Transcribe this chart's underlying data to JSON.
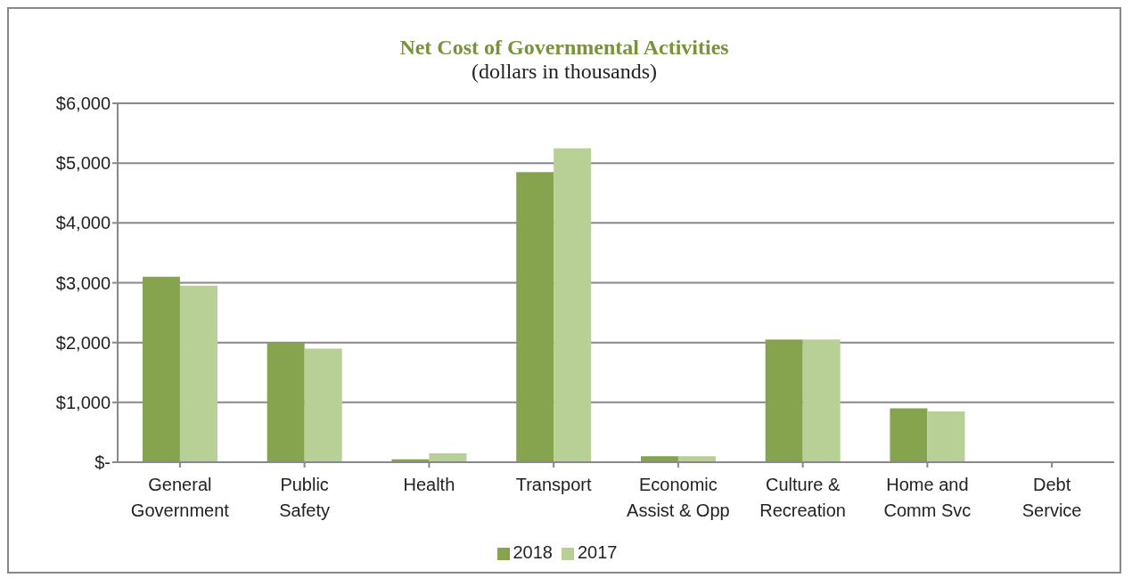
{
  "chart_data": {
    "type": "bar",
    "title": "Net Cost of Governmental Activities",
    "subtitle": "(dollars in thousands)",
    "categories": [
      "General Government",
      "Public Safety",
      "Health",
      "Transport",
      "Economic Assist & Opp",
      "Culture & Recreation",
      "Home and Comm Svc",
      "Debt Service"
    ],
    "series": [
      {
        "name": "2018",
        "color": "#86a44e",
        "values": [
          3100,
          2000,
          50,
          4850,
          100,
          2050,
          900,
          0
        ]
      },
      {
        "name": "2017",
        "color": "#b8cf96",
        "values": [
          2950,
          1900,
          150,
          5250,
          100,
          2050,
          850,
          0
        ]
      }
    ],
    "ylim": [
      0,
      6000
    ],
    "yticks": [
      {
        "value": 0,
        "label": "$-"
      },
      {
        "value": 1000,
        "label": "$1,000"
      },
      {
        "value": 2000,
        "label": "$2,000"
      },
      {
        "value": 3000,
        "label": "$3,000"
      },
      {
        "value": 4000,
        "label": "$4,000"
      },
      {
        "value": 5000,
        "label": "$5,000"
      },
      {
        "value": 6000,
        "label": "$6,000"
      }
    ],
    "grid": "y",
    "legend": "bottom"
  }
}
